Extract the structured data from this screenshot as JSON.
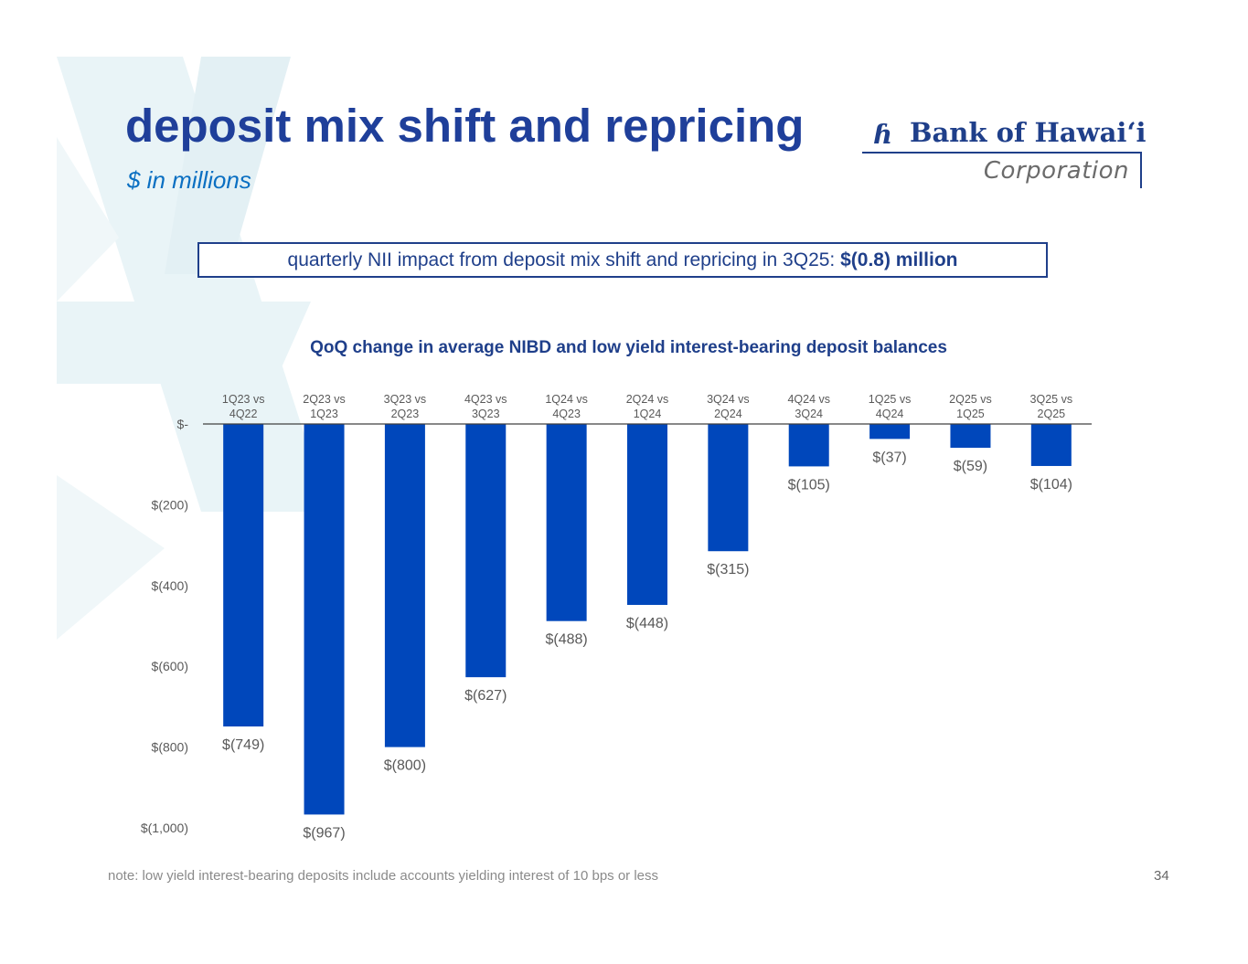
{
  "slide": {
    "title": "deposit mix shift and repricing",
    "subtitle": "$ in millions",
    "note": "note: low yield interest-bearing deposits include accounts yielding interest of 10 bps or less",
    "page_number": "34"
  },
  "logo": {
    "mark": "ɦ",
    "name": "Bank of Hawai‘i",
    "sub": "Corporation"
  },
  "callout": {
    "text": "quarterly NII impact from deposit mix shift and repricing in 3Q25: ",
    "value": "$(0.8) million"
  },
  "colors": {
    "title": "#1f3f9a",
    "subtitle": "#0a6fc2",
    "bar": "#0047bb",
    "axis_text": "#595959",
    "watermark": "#e9f4f7"
  },
  "chart_data": {
    "type": "bar",
    "title": "QoQ change in average NIBD and low yield interest-bearing deposit balances",
    "categories": [
      [
        "1Q23 vs",
        "4Q22"
      ],
      [
        "2Q23 vs",
        "1Q23"
      ],
      [
        "3Q23 vs",
        "2Q23"
      ],
      [
        "4Q23 vs",
        "3Q23"
      ],
      [
        "1Q24 vs",
        "4Q23"
      ],
      [
        "2Q24 vs",
        "1Q24"
      ],
      [
        "3Q24 vs",
        "2Q24"
      ],
      [
        "4Q24 vs",
        "3Q24"
      ],
      [
        "1Q25 vs",
        "4Q24"
      ],
      [
        "2Q25 vs",
        "1Q25"
      ],
      [
        "3Q25 vs",
        "2Q25"
      ]
    ],
    "values": [
      -749,
      -967,
      -800,
      -627,
      -488,
      -448,
      -315,
      -105,
      -37,
      -59,
      -104
    ],
    "data_labels": [
      "$(749)",
      "$(967)",
      "$(800)",
      "$(627)",
      "$(488)",
      "$(448)",
      "$(315)",
      "$(105)",
      "$(37)",
      "$(59)",
      "$(104)"
    ],
    "yticks": [
      0,
      -200,
      -400,
      -600,
      -800,
      -1000
    ],
    "ytick_labels": [
      "$-",
      "$(200)",
      "$(400)",
      "$(600)",
      "$(800)",
      "$(1,000)"
    ],
    "ylim": [
      -1000,
      0
    ],
    "xlabel": "",
    "ylabel": "",
    "grid": false,
    "legend": "none"
  }
}
